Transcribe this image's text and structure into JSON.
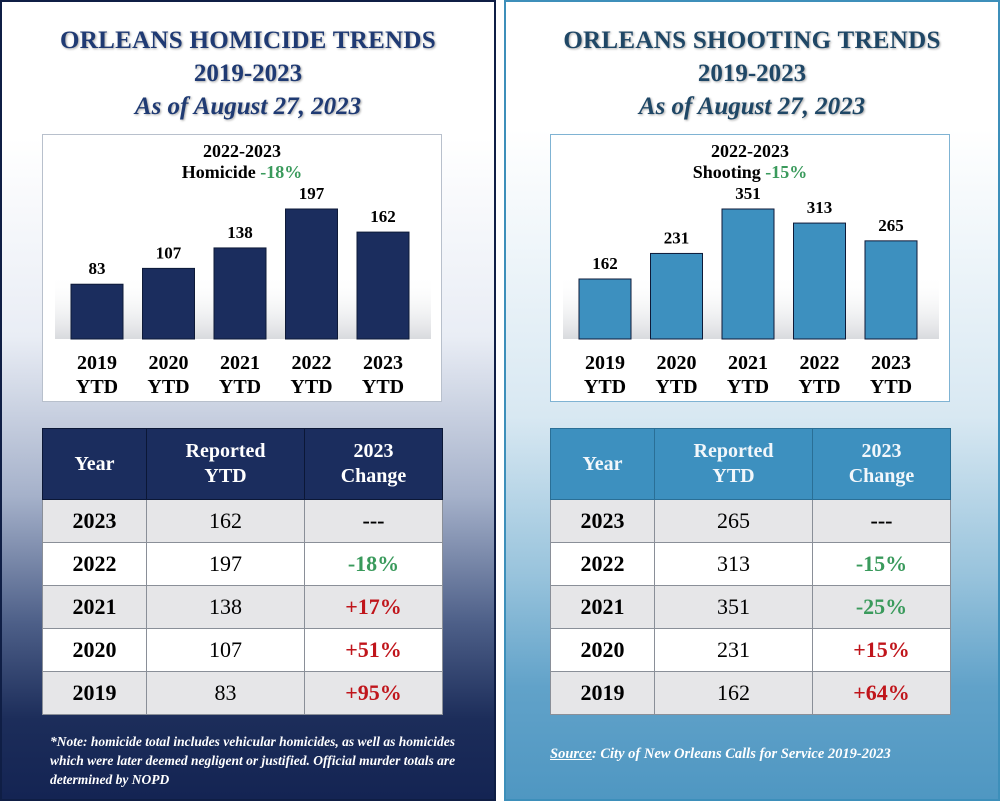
{
  "left": {
    "title_line1": "ORLEANS HOMICIDE TRENDS",
    "title_line2": "2019-2023",
    "title_line3": "As of August 27, 2023",
    "chart_head_line1": "2022-2023",
    "chart_head_label": "Homicide",
    "chart_head_pct": "-18%",
    "table_headers": [
      "Year",
      "Reported YTD",
      "2023 Change"
    ],
    "rows": [
      {
        "year": "2023",
        "reported": "162",
        "change": "---",
        "dir": "none"
      },
      {
        "year": "2022",
        "reported": "197",
        "change": "-18%",
        "dir": "down"
      },
      {
        "year": "2021",
        "reported": "138",
        "change": "+17%",
        "dir": "up"
      },
      {
        "year": "2020",
        "reported": "107",
        "change": "+51%",
        "dir": "up"
      },
      {
        "year": "2019",
        "reported": "83",
        "change": "+95%",
        "dir": "up"
      }
    ],
    "note": "*Note: homicide total includes vehicular homicides, as well as homicides which were later deemed negligent or justified. Official murder totals are determined by NOPD"
  },
  "right": {
    "title_line1": "ORLEANS SHOOTING TRENDS",
    "title_line2": "2019-2023",
    "title_line3": "As of August 27, 2023",
    "chart_head_line1": "2022-2023",
    "chart_head_label": "Shooting",
    "chart_head_pct": "-15%",
    "table_headers": [
      "Year",
      "Reported YTD",
      "2023 Change"
    ],
    "rows": [
      {
        "year": "2023",
        "reported": "265",
        "change": "---",
        "dir": "none"
      },
      {
        "year": "2022",
        "reported": "313",
        "change": "-15%",
        "dir": "down"
      },
      {
        "year": "2021",
        "reported": "351",
        "change": "-25%",
        "dir": "down"
      },
      {
        "year": "2020",
        "reported": "231",
        "change": "+15%",
        "dir": "up"
      },
      {
        "year": "2019",
        "reported": "162",
        "change": "+64%",
        "dir": "up"
      }
    ],
    "source_label": "Source",
    "source_text": ":  City of New Orleans Calls for Service 2019-2023"
  },
  "colors": {
    "homicide_bar": "#1b2d5e",
    "shooting_bar": "#3d90bf",
    "decrease": "#3a9a5c",
    "increase": "#c0151b"
  },
  "chart_data": [
    {
      "type": "bar",
      "categories": [
        "2019 YTD",
        "2020 YTD",
        "2021 YTD",
        "2022 YTD",
        "2023 YTD"
      ],
      "values": [
        83,
        107,
        138,
        197,
        162
      ],
      "title": "2022-2023 Homicide -18%",
      "xlabel": "",
      "ylabel": "",
      "ylim": [
        0,
        220
      ],
      "data_labels": true,
      "grid": false,
      "legend": "none"
    },
    {
      "type": "bar",
      "categories": [
        "2019 YTD",
        "2020 YTD",
        "2021 YTD",
        "2022 YTD",
        "2023 YTD"
      ],
      "values": [
        162,
        231,
        351,
        313,
        265
      ],
      "title": "2022-2023 Shooting -15%",
      "xlabel": "",
      "ylabel": "",
      "ylim": [
        0,
        440
      ],
      "data_labels": true,
      "grid": false,
      "legend": "none"
    }
  ]
}
